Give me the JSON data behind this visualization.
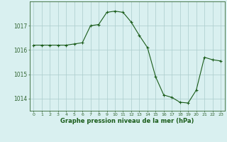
{
  "x": [
    0,
    1,
    2,
    3,
    4,
    5,
    6,
    7,
    8,
    9,
    10,
    11,
    12,
    13,
    14,
    15,
    16,
    17,
    18,
    19,
    20,
    21,
    22,
    23
  ],
  "y": [
    1016.2,
    1016.2,
    1016.2,
    1016.2,
    1016.2,
    1016.25,
    1016.3,
    1017.0,
    1017.05,
    1017.55,
    1017.6,
    1017.55,
    1017.15,
    1016.6,
    1016.1,
    1014.9,
    1014.15,
    1014.05,
    1013.85,
    1013.82,
    1014.35,
    1015.7,
    1015.6,
    1015.55
  ],
  "line_color": "#1a5c1a",
  "marker": "+",
  "bg_color": "#d9f0f0",
  "grid_color": "#aacccc",
  "axis_color": "#336633",
  "label_color": "#1a5c1a",
  "xlabel": "Graphe pression niveau de la mer (hPa)",
  "yticks": [
    1014,
    1015,
    1016,
    1017
  ],
  "xtick_labels": [
    "0",
    "1",
    "2",
    "3",
    "4",
    "5",
    "6",
    "7",
    "8",
    "9",
    "10",
    "11",
    "12",
    "13",
    "14",
    "15",
    "16",
    "17",
    "18",
    "19",
    "20",
    "21",
    "22",
    "23"
  ],
  "ylim": [
    1013.5,
    1018.0
  ],
  "xlim": [
    -0.5,
    23.5
  ]
}
